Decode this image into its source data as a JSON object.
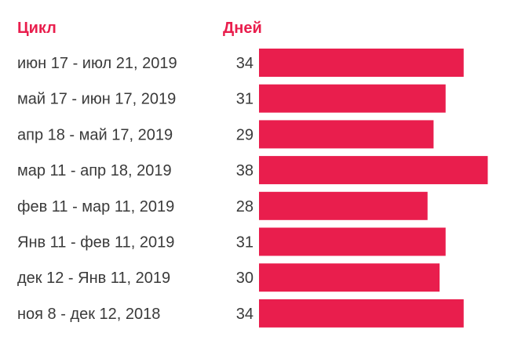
{
  "header": {
    "cycle_label": "Цикл",
    "days_label": "Дней"
  },
  "colors": {
    "accent": "#e91e4d",
    "text": "#3a3a3a",
    "background": "#ffffff"
  },
  "chart_data": {
    "type": "bar",
    "orientation": "horizontal",
    "title": "",
    "xlabel": "Дней",
    "ylabel": "Цикл",
    "categories": [
      "июн 17 - июл 21, 2019",
      "май 17 - июн 17, 2019",
      "апр 18 - май 17, 2019",
      "мар 11 - апр 18, 2019",
      "фев 11 - мар 11, 2019",
      "Янв 11 - фев 11, 2019",
      "дек 12 - Янв 11, 2019",
      "ноя 8 - дек 12, 2018"
    ],
    "values": [
      34,
      31,
      29,
      38,
      28,
      31,
      30,
      34
    ],
    "grid": false,
    "legend": "none"
  }
}
